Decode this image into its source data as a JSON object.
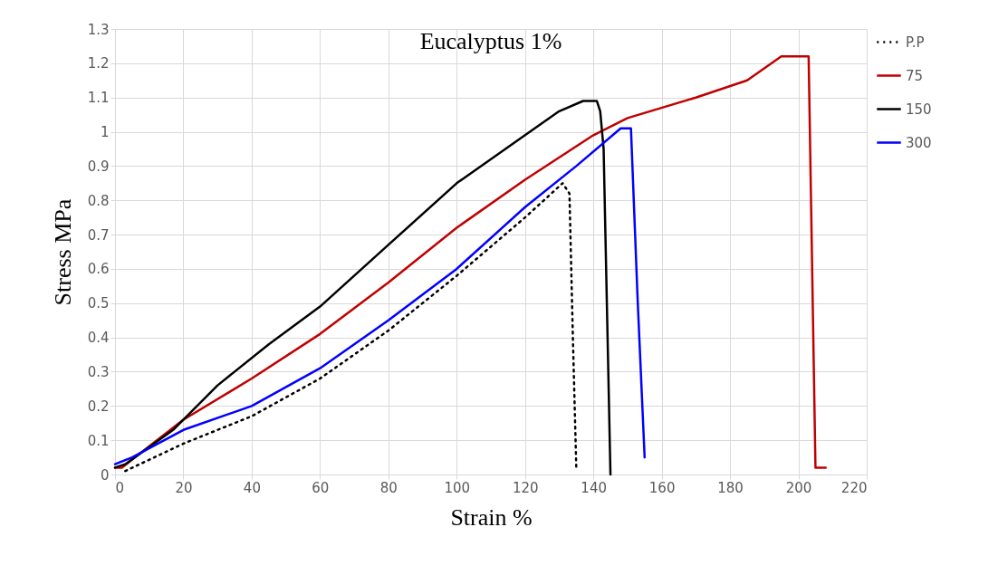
{
  "chart_data": {
    "type": "line",
    "title": "Eucalyptus    1%",
    "xlabel": "Strain %",
    "ylabel": "Stress MPa",
    "xlim": [
      0,
      220
    ],
    "xticks": [
      0,
      20,
      40,
      60,
      80,
      100,
      120,
      140,
      160,
      180,
      200,
      220
    ],
    "ylim": [
      0,
      1.3
    ],
    "yticks": [
      0,
      0.1,
      0.2,
      0.3,
      0.4,
      0.5,
      0.6,
      0.7,
      0.8,
      0.9,
      1,
      1.1,
      1.2,
      1.3
    ],
    "grid": true,
    "legend": "right",
    "marker": "none",
    "series": [
      {
        "name": "P.P",
        "color": "#000000",
        "line_style": "dotted",
        "x": [
          3,
          20,
          40,
          60,
          80,
          100,
          120,
          131,
          133,
          134,
          135
        ],
        "values": [
          0.01,
          0.09,
          0.17,
          0.28,
          0.42,
          0.58,
          0.75,
          0.85,
          0.82,
          0.4,
          0.02
        ]
      },
      {
        "name": "75",
        "color": "#c00000",
        "line_style": "solid",
        "x": [
          0,
          2,
          20,
          40,
          60,
          80,
          100,
          120,
          140,
          150,
          170,
          185,
          195,
          203,
          205,
          208
        ],
        "values": [
          0.02,
          0.02,
          0.16,
          0.28,
          0.41,
          0.56,
          0.72,
          0.86,
          0.99,
          1.04,
          1.1,
          1.15,
          1.22,
          1.22,
          0.02,
          0.02
        ]
      },
      {
        "name": "150",
        "color": "#000000",
        "line_style": "solid",
        "x": [
          0,
          3,
          17,
          30,
          45,
          60,
          80,
          100,
          120,
          130,
          137,
          141,
          142,
          143,
          145
        ],
        "values": [
          0.02,
          0.03,
          0.13,
          0.26,
          0.38,
          0.49,
          0.67,
          0.85,
          0.99,
          1.06,
          1.09,
          1.09,
          1.06,
          0.95,
          0
        ]
      },
      {
        "name": "300",
        "color": "#0000ff",
        "line_style": "solid",
        "x": [
          0,
          5,
          20,
          40,
          60,
          80,
          100,
          120,
          135,
          148,
          151,
          153,
          155
        ],
        "values": [
          0.03,
          0.05,
          0.13,
          0.2,
          0.31,
          0.45,
          0.6,
          0.78,
          0.9,
          1.01,
          1.01,
          0.5,
          0.05
        ]
      }
    ]
  }
}
